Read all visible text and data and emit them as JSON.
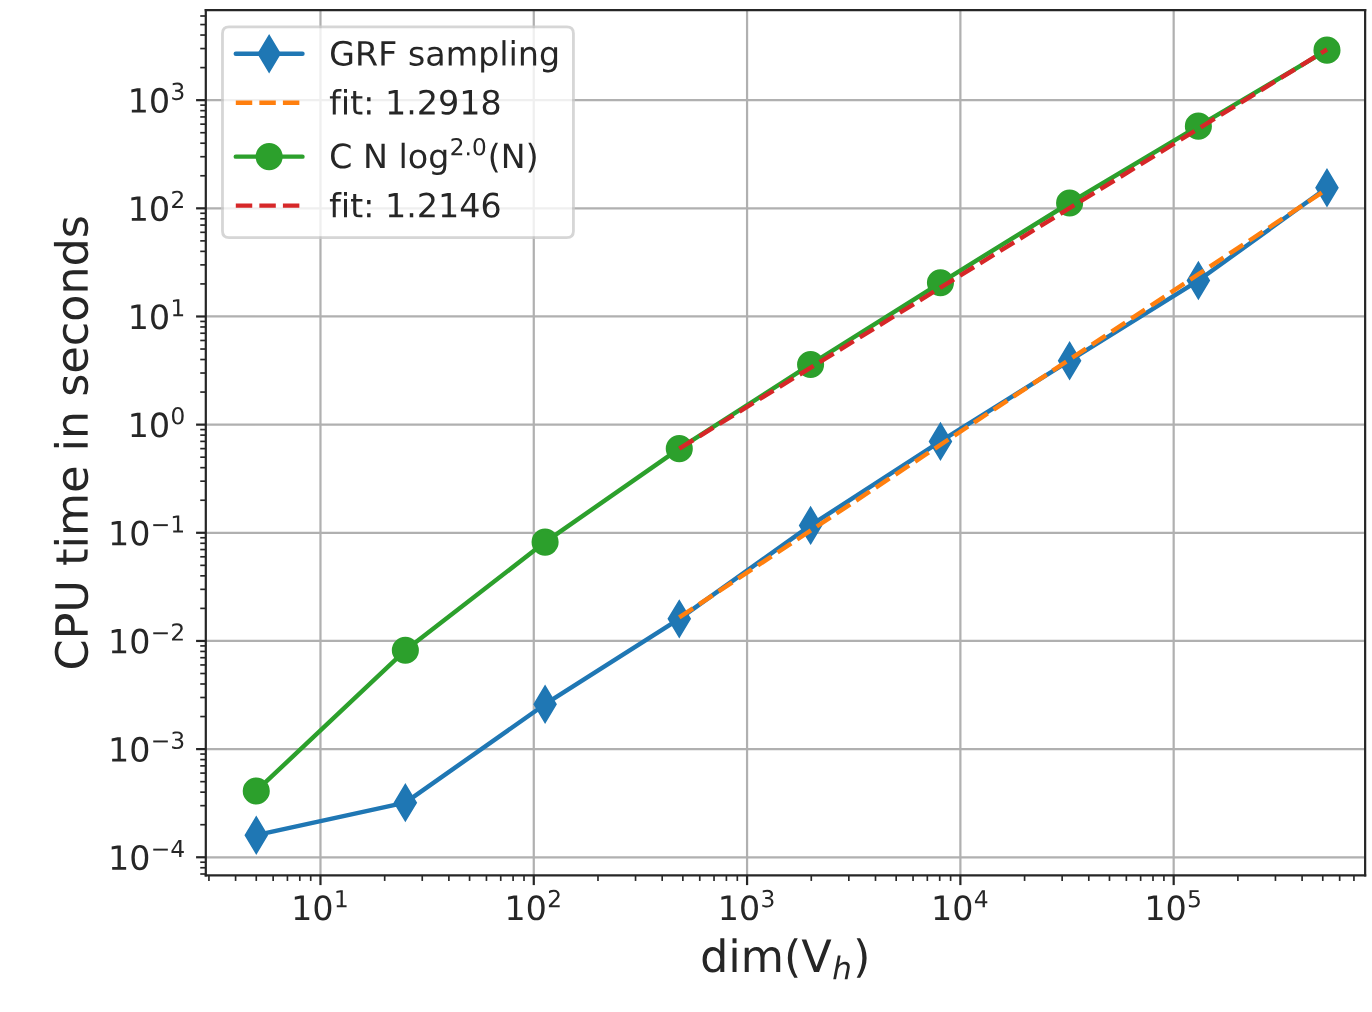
{
  "chart_data": {
    "type": "line",
    "xlabel": "dim(V$_{h}$)",
    "ylabel": "CPU time in seconds",
    "log": "xy",
    "grid": true,
    "legend": "top left",
    "xlim": [
      2.9,
      790000
    ],
    "ylim": [
      6.8e-05,
      6800
    ],
    "xticks": [
      {
        "value": 10,
        "label": "10$^{1}$"
      },
      {
        "value": 100,
        "label": "10$^{2}$"
      },
      {
        "value": 1000,
        "label": "10$^{3}$"
      },
      {
        "value": 10000,
        "label": "10$^{4}$"
      },
      {
        "value": 100000,
        "label": "10$^{5}$"
      }
    ],
    "yticks": [
      {
        "value": 0.0001,
        "label": "10$^{−4}$"
      },
      {
        "value": 0.001,
        "label": "10$^{−3}$"
      },
      {
        "value": 0.01,
        "label": "10$^{−2}$"
      },
      {
        "value": 0.1,
        "label": "10$^{−1}$"
      },
      {
        "value": 1,
        "label": "10$^{0}$"
      },
      {
        "value": 10,
        "label": "10$^{1}$"
      },
      {
        "value": 100,
        "label": "10$^{2}$"
      },
      {
        "value": 1000,
        "label": "10$^{3}$"
      }
    ],
    "series": [
      {
        "name": "GRF sampling",
        "color": "#1f77b4",
        "marker": "diamond",
        "line_style": "solid",
        "x": [
          5,
          25,
          113,
          481,
          1985,
          8065,
          32513,
          130561,
          523265
        ],
        "values": [
          0.00016,
          0.00032,
          0.0026,
          0.016,
          0.117,
          0.7,
          3.9,
          21.5,
          155
        ]
      },
      {
        "name": "fit: 1.2918",
        "color": "#ff7f0e",
        "marker": "none",
        "line_style": "dashed",
        "x": [
          481,
          523265
        ],
        "values": [
          0.0165,
          150
        ]
      },
      {
        "name": "C N log$^{2.0}$(N)",
        "color": "#2ca02c",
        "marker": "circle",
        "line_style": "solid",
        "x": [
          5,
          25,
          113,
          481,
          1985,
          8065,
          32513,
          130561,
          523265
        ],
        "values": [
          0.00041,
          0.0082,
          0.082,
          0.6,
          3.6,
          20.5,
          112,
          575,
          2900
        ]
      },
      {
        "name": "fit: 1.2146",
        "color": "#d62728",
        "marker": "none",
        "line_style": "dashed",
        "x": [
          481,
          523265
        ],
        "values": [
          0.6,
          2940
        ]
      }
    ]
  }
}
